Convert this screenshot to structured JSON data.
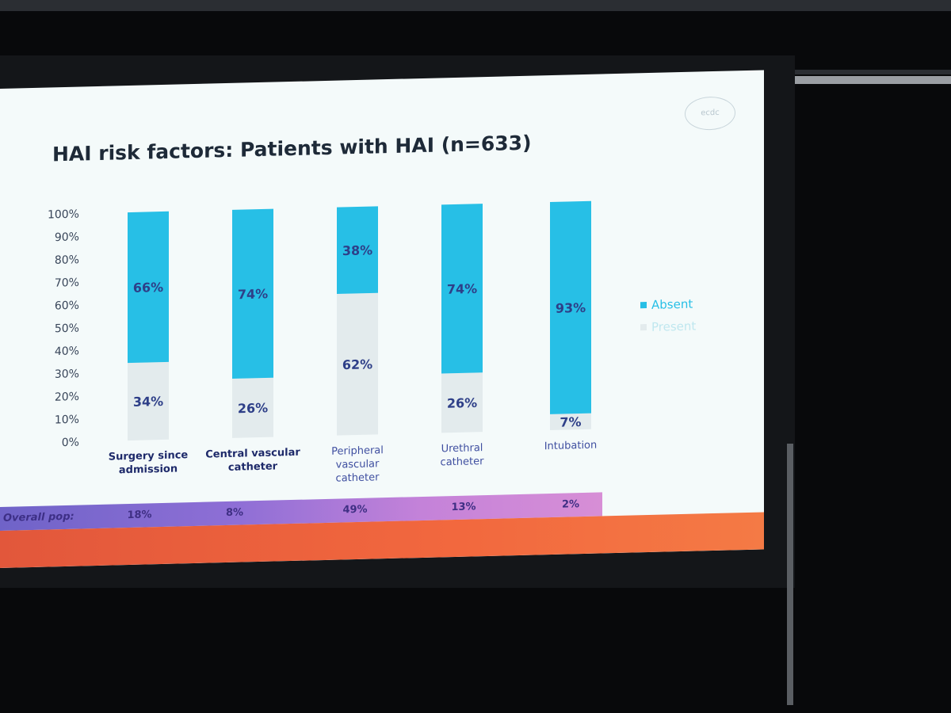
{
  "slide": {
    "title": "HAI risk factors: Patients with HAI (n=633)",
    "logo_text": "ecdc"
  },
  "chart_data": {
    "type": "bar",
    "stacked": true,
    "title": "HAI risk factors: Patients with HAI (n=633)",
    "categories": [
      [
        "Surgery since",
        "admission"
      ],
      [
        "Central vascular",
        "catheter"
      ],
      [
        "Peripheral",
        "vascular",
        "catheter"
      ],
      [
        "Urethral",
        "catheter"
      ],
      [
        "Intubation"
      ]
    ],
    "series": [
      {
        "name": "Absent",
        "values": [
          66,
          74,
          38,
          74,
          93
        ],
        "labels": [
          "66%",
          "74%",
          "38%",
          "74%",
          "93%"
        ],
        "color": "#27bfe6"
      },
      {
        "name": "Present",
        "values": [
          34,
          26,
          62,
          26,
          7
        ],
        "labels": [
          "34%",
          "26%",
          "62%",
          "26%",
          "7%"
        ],
        "color": "#e3ebed"
      }
    ],
    "ylim": [
      0,
      100
    ],
    "yticks": [
      "0%",
      "10%",
      "20%",
      "30%",
      "40%",
      "50%",
      "60%",
      "70%",
      "80%",
      "90%",
      "100%"
    ],
    "legend_position": "right",
    "grid": false
  },
  "overall_pop": {
    "label": "Overall pop:",
    "values": [
      "18%",
      "8%",
      "49%",
      "13%",
      "2%"
    ]
  },
  "colors": {
    "absent": "#27bfe6",
    "present": "#e3ebed",
    "label_dark": "#2e3f88",
    "band": "#8f6fd6",
    "footer": "#f2683e"
  }
}
